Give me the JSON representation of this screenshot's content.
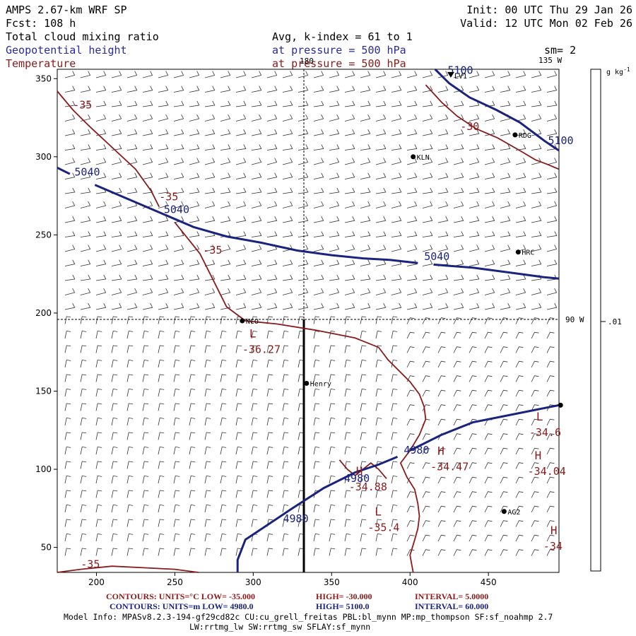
{
  "header": {
    "model": "AMPS 2.67-km WRF SP",
    "forecast": "Fcst: 108 h",
    "init": "Init: 00 UTC Thu 29 Jan 26",
    "valid": "Valid: 12 UTC Mon 02 Feb 26",
    "field1": "Total cloud mixing ratio",
    "field2": "Geopotential height",
    "field3": "Temperature",
    "avg_line": "Avg, k-index =  61 to   1",
    "pressure_line1": "at pressure =  500 hPa",
    "pressure_line2": "at pressure =  500 hPa",
    "smoothing": "sm= 2"
  },
  "colors": {
    "height": "#1a237e",
    "temperature": "#8b1a1a",
    "black": "#000000",
    "blue_text": "#2a2aa0",
    "red_text": "#8b1a1a"
  },
  "colorbar": {
    "units": "g kg",
    "units_sup": "-1",
    "label": ".01"
  },
  "meridians": {
    "top": "180",
    "top_right": "135 W",
    "right": "90 W"
  },
  "stations": [
    {
      "name": "LV1",
      "x": 426,
      "y": 352,
      "marker": "triangle"
    },
    {
      "name": "RDG",
      "x": 467,
      "y": 314,
      "marker": "dot"
    },
    {
      "name": "KLN",
      "x": 402,
      "y": 300,
      "marker": "dot"
    },
    {
      "name": "HRC",
      "x": 469,
      "y": 239,
      "marker": "dot"
    },
    {
      "name": "NCO",
      "x": 293,
      "y": 195,
      "marker": "dot"
    },
    {
      "name": "Henry",
      "x": 334,
      "y": 155,
      "marker": "dot"
    },
    {
      "name": "AG2",
      "x": 460,
      "y": 73,
      "marker": "dot"
    },
    {
      "name": "",
      "x": 496,
      "y": 141,
      "marker": "dot"
    }
  ],
  "chart_data": {
    "type": "contour-map",
    "title": "Total cloud mixing ratio / Geopotential height / Temperature at 500 hPa",
    "xlim": [
      175,
      495
    ],
    "ylim": [
      34,
      356
    ],
    "xticks": [
      200,
      250,
      300,
      350,
      400,
      450
    ],
    "yticks": [
      50,
      100,
      150,
      200,
      250,
      300,
      350
    ],
    "height_contours": [
      {
        "level": 5100,
        "points": [
          [
            416,
            356
          ],
          [
            425,
            347
          ],
          [
            438,
            338
          ],
          [
            455,
            330
          ],
          [
            470,
            322
          ],
          [
            478,
            316
          ],
          [
            486,
            310
          ],
          [
            492,
            306
          ],
          [
            495,
            304
          ]
        ]
      },
      {
        "level": 5040,
        "points": [
          [
            175,
            293
          ],
          [
            183,
            289
          ]
        ]
      },
      {
        "level": 5040,
        "points": [
          [
            199,
            282
          ],
          [
            220,
            273
          ],
          [
            241,
            264
          ],
          [
            262,
            255
          ],
          [
            283,
            249
          ],
          [
            305,
            245
          ],
          [
            328,
            240
          ],
          [
            350,
            237
          ],
          [
            370,
            235
          ],
          [
            387,
            234
          ],
          [
            405,
            232
          ]
        ]
      },
      {
        "level": 5040,
        "points": [
          [
            415,
            231
          ],
          [
            440,
            229
          ],
          [
            463,
            226
          ],
          [
            485,
            223
          ],
          [
            495,
            222
          ]
        ]
      },
      {
        "level": 4980,
        "points": [
          [
            290,
            34
          ],
          [
            290,
            42
          ],
          [
            295,
            55
          ],
          [
            310,
            65
          ],
          [
            325,
            75
          ],
          [
            345,
            88
          ],
          [
            365,
            98
          ],
          [
            380,
            103
          ],
          [
            392,
            108
          ]
        ]
      },
      {
        "level": 4980,
        "points": [
          [
            400,
            112
          ],
          [
            420,
            122
          ],
          [
            440,
            130
          ],
          [
            460,
            134
          ],
          [
            480,
            138
          ],
          [
            495,
            141
          ]
        ]
      }
    ],
    "temperature_contours": [
      {
        "level": -35,
        "points": [
          [
            175,
            342
          ],
          [
            185,
            330
          ],
          [
            195,
            320
          ],
          [
            210,
            306
          ],
          [
            225,
            292
          ],
          [
            235,
            278
          ],
          [
            240,
            268
          ]
        ]
      },
      {
        "level": -35,
        "points": [
          [
            250,
            258
          ],
          [
            258,
            248
          ],
          [
            266,
            238
          ],
          [
            274,
            222
          ],
          [
            283,
            204
          ],
          [
            295,
            195
          ],
          [
            315,
            193
          ],
          [
            340,
            189
          ],
          [
            365,
            184
          ],
          [
            380,
            178
          ],
          [
            386,
            170
          ],
          [
            393,
            163
          ],
          [
            400,
            156
          ],
          [
            406,
            148
          ],
          [
            409,
            140
          ],
          [
            410,
            132
          ],
          [
            406,
            122
          ],
          [
            400,
            112
          ],
          [
            394,
            104
          ],
          [
            398,
            95
          ],
          [
            403,
            87
          ],
          [
            405,
            78
          ],
          [
            406,
            70
          ],
          [
            405,
            62
          ],
          [
            403,
            55
          ],
          [
            400,
            45
          ],
          [
            402,
            34
          ]
        ]
      },
      {
        "level": -30,
        "points": [
          [
            410,
            346
          ],
          [
            420,
            335
          ],
          [
            430,
            326
          ],
          [
            442,
            318
          ],
          [
            456,
            312
          ],
          [
            470,
            304
          ],
          [
            480,
            298
          ],
          [
            488,
            295
          ],
          [
            495,
            292
          ]
        ]
      },
      {
        "level": -35,
        "points": [
          [
            175,
            34
          ],
          [
            190,
            36
          ],
          [
            210,
            38
          ],
          [
            230,
            37
          ],
          [
            250,
            36
          ],
          [
            265,
            34
          ]
        ]
      },
      {
        "level": -35,
        "points": [
          [
            355,
            106
          ],
          [
            360,
            100
          ],
          [
            365,
            96
          ],
          [
            370,
            100
          ],
          [
            375,
            104
          ],
          [
            380,
            100
          ],
          [
            385,
            94
          ]
        ]
      }
    ],
    "extrema": [
      {
        "kind": "L",
        "value": "-36.27",
        "x": 293,
        "y": 178
      },
      {
        "kind": "L",
        "value": "-35.4",
        "x": 373,
        "y": 64
      },
      {
        "kind": "H",
        "value": "-34.88",
        "x": 361,
        "y": 90
      },
      {
        "kind": "H",
        "value": "-34.47",
        "x": 413,
        "y": 103
      },
      {
        "kind": "H",
        "value": "-34.04",
        "x": 475,
        "y": 100
      },
      {
        "kind": "L",
        "value": "-34.6",
        "x": 476,
        "y": 125
      },
      {
        "kind": "H",
        "value": "-34",
        "x": 485,
        "y": 52
      }
    ],
    "height_labels": [
      {
        "text": "5100",
        "x": 424,
        "y": 353
      },
      {
        "text": "5100",
        "x": 488,
        "y": 308
      },
      {
        "text": "5040",
        "x": 186,
        "y": 288
      },
      {
        "text": "5040",
        "x": 243,
        "y": 264
      },
      {
        "text": "5040",
        "x": 409,
        "y": 234
      },
      {
        "text": "4980",
        "x": 319,
        "y": 66
      },
      {
        "text": "4980",
        "x": 358,
        "y": 92
      },
      {
        "text": "4980",
        "x": 396,
        "y": 110
      }
    ],
    "temperature_labels": [
      {
        "text": "-35",
        "x": 185,
        "y": 331
      },
      {
        "text": "-35",
        "x": 240,
        "y": 272
      },
      {
        "text": "-35",
        "x": 268,
        "y": 238
      },
      {
        "text": "-30",
        "x": 432,
        "y": 317
      },
      {
        "text": "-35",
        "x": 190,
        "y": 37
      }
    ]
  },
  "footer": {
    "temp_contours": "CONTOURS:  UNITS=°C  LOW= -35.000",
    "temp_high": "HIGH= -30.000",
    "temp_interval": "INTERVAL=    5.0000",
    "height_contours": "CONTOURS:  UNITS=m  LOW=  4980.0",
    "height_high": "HIGH=  5100.0",
    "height_interval": "INTERVAL=   60.000",
    "model_info": "Model Info: MPASv8.2.3-194-gf29cd82c CU:cu_grell_freitas PBL:bl_mynn MP:mp_thompson SF:sf_noahmp 2.7",
    "model_info2": "LW:rrtmg_lw SW:rrtmg_sw SFLAY:sf_mynn"
  }
}
